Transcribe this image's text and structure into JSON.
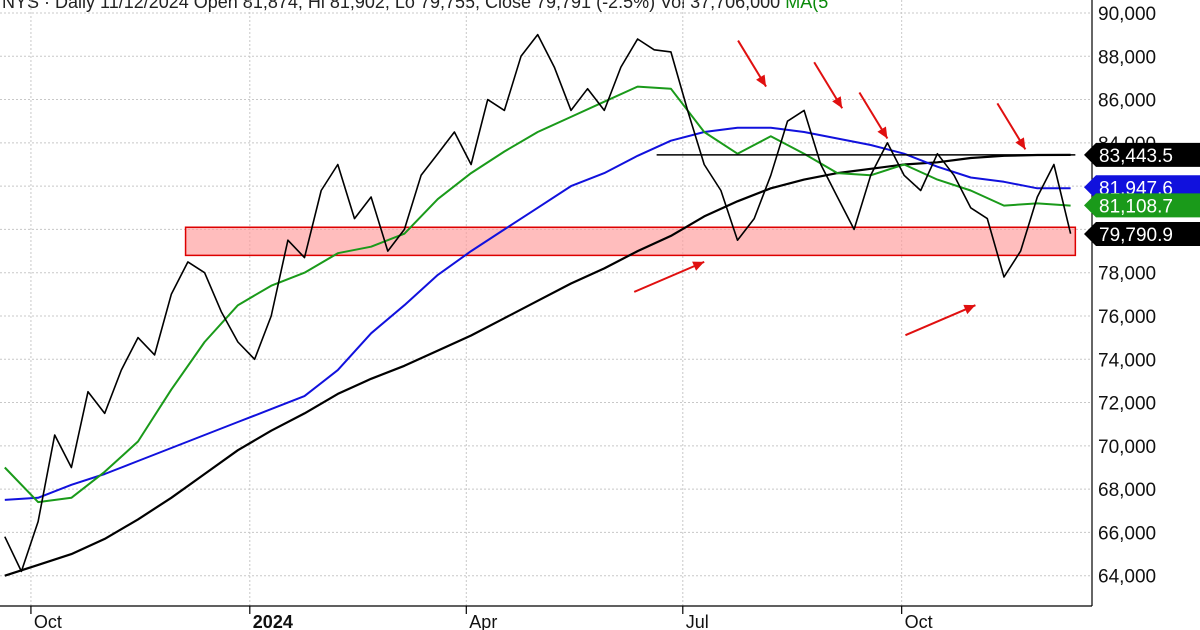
{
  "header": {
    "text": "NYS · Daily 11/12/2024 Open 81,874, Hi 81,902, Lo 79,755, Close 79,791 (-2.5%) Vol 37,706,000",
    "ma_text": "MA(5"
  },
  "colors": {
    "price": "#000000",
    "ma50": "#1a9a1a",
    "ma100": "#1111dd",
    "ma200": "#000000",
    "zone_fill": "#ff9999",
    "zone_stroke": "#dd0000",
    "arrows": "#e01010",
    "grid": "#c8c8c8"
  },
  "chart_data": {
    "type": "line",
    "title": "",
    "xlabel": "",
    "ylabel": "",
    "ylim": [
      62600,
      90600
    ],
    "y_ticks": [
      "64,000",
      "66,000",
      "68,000",
      "70,000",
      "72,000",
      "74,000",
      "76,000",
      "78,000",
      "80,000",
      "82,000",
      "84,000",
      "86,000",
      "88,000",
      "90,000"
    ],
    "y_tick_values": [
      64000,
      66000,
      68000,
      70000,
      72000,
      74000,
      76000,
      78000,
      80000,
      82000,
      84000,
      86000,
      88000,
      90000
    ],
    "x_ticks": [
      {
        "label": "Oct",
        "bold": false
      },
      {
        "label": "2024",
        "bold": true
      },
      {
        "label": "Apr",
        "bold": false
      },
      {
        "label": "Jul",
        "bold": false
      },
      {
        "label": "Oct",
        "bold": false
      }
    ],
    "grid": true,
    "series": [
      {
        "name": "price",
        "x": [
          "2023-09-20",
          "2023-09-27",
          "2023-10-04",
          "2023-10-11",
          "2023-10-18",
          "2023-10-25",
          "2023-11-01",
          "2023-11-08",
          "2023-11-15",
          "2023-11-22",
          "2023-11-29",
          "2023-12-06",
          "2023-12-13",
          "2023-12-20",
          "2023-12-27",
          "2024-01-03",
          "2024-01-10",
          "2024-01-17",
          "2024-01-24",
          "2024-01-31",
          "2024-02-07",
          "2024-02-14",
          "2024-02-21",
          "2024-02-28",
          "2024-03-06",
          "2024-03-13",
          "2024-03-20",
          "2024-03-27",
          "2024-04-03",
          "2024-04-10",
          "2024-04-17",
          "2024-04-24",
          "2024-05-01",
          "2024-05-08",
          "2024-05-15",
          "2024-05-22",
          "2024-05-29",
          "2024-06-05",
          "2024-06-12",
          "2024-06-19",
          "2024-06-26",
          "2024-07-03",
          "2024-07-10",
          "2024-07-17",
          "2024-07-24",
          "2024-07-31",
          "2024-08-07",
          "2024-08-14",
          "2024-08-21",
          "2024-08-28",
          "2024-09-04",
          "2024-09-11",
          "2024-09-18",
          "2024-09-25",
          "2024-10-02",
          "2024-10-09",
          "2024-10-16",
          "2024-10-23",
          "2024-10-30",
          "2024-11-06",
          "2024-11-13",
          "2024-11-20",
          "2024-11-27",
          "2024-12-04",
          "2024-12-11"
        ],
        "values": [
          65800,
          64200,
          66500,
          70500,
          69000,
          72500,
          71500,
          73500,
          75000,
          74200,
          77000,
          78500,
          78000,
          76200,
          74800,
          74000,
          76000,
          79500,
          78700,
          81800,
          83000,
          80500,
          81500,
          79000,
          80000,
          82500,
          83500,
          84500,
          83000,
          86000,
          85500,
          88000,
          89000,
          87500,
          85500,
          86500,
          85500,
          87500,
          88800,
          88300,
          88200,
          85500,
          83000,
          81800,
          79500,
          80500,
          82500,
          85000,
          85500,
          83000,
          81500,
          80000,
          82500,
          84000,
          82500,
          81800,
          83500,
          82500,
          81000,
          80500,
          77800,
          79000,
          81500,
          83000,
          79800
        ]
      },
      {
        "name": "ma50",
        "x": [
          "2023-09-20",
          "2023-10-04",
          "2023-10-18",
          "2023-11-01",
          "2023-11-15",
          "2023-11-29",
          "2023-12-13",
          "2023-12-27",
          "2024-01-10",
          "2024-01-24",
          "2024-02-07",
          "2024-02-21",
          "2024-03-06",
          "2024-03-20",
          "2024-04-03",
          "2024-04-17",
          "2024-05-01",
          "2024-05-15",
          "2024-05-29",
          "2024-06-12",
          "2024-06-26",
          "2024-07-10",
          "2024-07-24",
          "2024-08-07",
          "2024-08-21",
          "2024-09-04",
          "2024-09-18",
          "2024-10-02",
          "2024-10-16",
          "2024-10-30",
          "2024-11-13",
          "2024-11-27",
          "2024-12-11"
        ],
        "values": [
          69000,
          67400,
          67600,
          68800,
          70200,
          72600,
          74800,
          76500,
          77400,
          78000,
          78900,
          79200,
          79800,
          81400,
          82600,
          83600,
          84500,
          85200,
          85900,
          86600,
          86500,
          84500,
          83500,
          84300,
          83500,
          82600,
          82500,
          83000,
          82300,
          81800,
          81100,
          81200,
          81100
        ]
      },
      {
        "name": "ma100",
        "x": [
          "2023-09-20",
          "2023-10-04",
          "2023-10-18",
          "2023-11-01",
          "2023-11-15",
          "2023-11-29",
          "2023-12-13",
          "2023-12-27",
          "2024-01-10",
          "2024-01-24",
          "2024-02-07",
          "2024-02-21",
          "2024-03-06",
          "2024-03-20",
          "2024-04-03",
          "2024-04-17",
          "2024-05-01",
          "2024-05-15",
          "2024-05-29",
          "2024-06-12",
          "2024-06-26",
          "2024-07-10",
          "2024-07-24",
          "2024-08-07",
          "2024-08-21",
          "2024-09-04",
          "2024-09-18",
          "2024-10-02",
          "2024-10-16",
          "2024-10-30",
          "2024-11-13",
          "2024-11-27",
          "2024-12-11"
        ],
        "values": [
          67500,
          67600,
          68200,
          68700,
          69300,
          69900,
          70500,
          71100,
          71700,
          72300,
          73500,
          75200,
          76500,
          77900,
          79000,
          80000,
          81000,
          82000,
          82600,
          83400,
          84100,
          84500,
          84700,
          84700,
          84500,
          84200,
          83900,
          83500,
          82900,
          82400,
          82200,
          81900,
          81900
        ]
      },
      {
        "name": "ma200",
        "x": [
          "2023-09-20",
          "2023-10-04",
          "2023-10-18",
          "2023-11-01",
          "2023-11-15",
          "2023-11-29",
          "2023-12-13",
          "2023-12-27",
          "2024-01-10",
          "2024-01-24",
          "2024-02-07",
          "2024-02-21",
          "2024-03-06",
          "2024-03-20",
          "2024-04-03",
          "2024-04-17",
          "2024-05-01",
          "2024-05-15",
          "2024-05-29",
          "2024-06-12",
          "2024-06-26",
          "2024-07-10",
          "2024-07-24",
          "2024-08-07",
          "2024-08-21",
          "2024-09-04",
          "2024-09-18",
          "2024-10-02",
          "2024-10-16",
          "2024-10-30",
          "2024-11-13",
          "2024-11-27",
          "2024-12-11"
        ],
        "values": [
          64000,
          64500,
          65000,
          65700,
          66600,
          67600,
          68700,
          69800,
          70700,
          71500,
          72400,
          73100,
          73700,
          74400,
          75100,
          75900,
          76700,
          77500,
          78200,
          79000,
          79700,
          80600,
          81300,
          81900,
          82300,
          82600,
          82800,
          83000,
          83100,
          83300,
          83400,
          83440,
          83443
        ]
      }
    ],
    "price_tags": [
      {
        "label": "83,443.5",
        "value": 83443.5,
        "color": "#000000"
      },
      {
        "label": "81,947.6",
        "value": 81947.6,
        "color": "#1111dd"
      },
      {
        "label": "81,108.7",
        "value": 81108.7,
        "color": "#1a9a1a"
      },
      {
        "label": "79,790.9",
        "value": 79790.9,
        "color": "#000000"
      }
    ],
    "support_zone": {
      "from": 78800,
      "to": 80100,
      "start": "2023-12-05",
      "end": "2024-12-13"
    },
    "resistance_line": {
      "value": 83443.5,
      "start": "2024-06-20",
      "end": "2024-12-13"
    },
    "annotations": [
      {
        "type": "arrow-down",
        "x": "2024-08-05",
        "y": 86600
      },
      {
        "type": "arrow-down",
        "x": "2024-09-06",
        "y": 85600
      },
      {
        "type": "arrow-down",
        "x": "2024-09-25",
        "y": 84200
      },
      {
        "type": "arrow-down",
        "x": "2024-11-22",
        "y": 83700
      },
      {
        "type": "arrow-up",
        "x": "2024-07-10",
        "y": 78500
      },
      {
        "type": "arrow-up",
        "x": "2024-11-01",
        "y": 76500
      }
    ]
  }
}
